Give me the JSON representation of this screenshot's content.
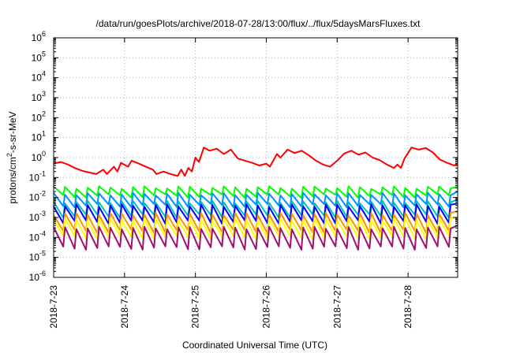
{
  "chart_data": {
    "type": "line",
    "title": "/data/run/goesPlots/archive/2018-07-28/13:00/flux/../flux/5daysMarsFluxes.txt",
    "xlabel": "Coordinated Universal Time (UTC)",
    "ylabel_parts": {
      "pre": "protons/cm",
      "sup": "2",
      "post": "-s-sr-MeV"
    },
    "y_scale": "log",
    "ylim_exponents": [
      -6,
      6
    ],
    "y_tick_labels": [
      {
        "base": "10",
        "exp": "-6"
      },
      {
        "base": "10",
        "exp": "-5"
      },
      {
        "base": "10",
        "exp": "-4"
      },
      {
        "base": "10",
        "exp": "-3"
      },
      {
        "base": "10",
        "exp": "-2"
      },
      {
        "base": "10",
        "exp": "-1"
      },
      {
        "base": "10",
        "exp": "0"
      },
      {
        "base": "10",
        "exp": "1"
      },
      {
        "base": "10",
        "exp": "2"
      },
      {
        "base": "10",
        "exp": "3"
      },
      {
        "base": "10",
        "exp": "4"
      },
      {
        "base": "10",
        "exp": "5"
      },
      {
        "base": "10",
        "exp": "6"
      }
    ],
    "x_tick_labels": [
      "2018-7-23",
      "2018-7-24",
      "2018-7-25",
      "2018-7-26",
      "2018-7-27",
      "2018-7-28"
    ],
    "x_range_days": [
      0,
      5.7
    ],
    "grid": true,
    "legend": "none",
    "series": [
      {
        "color": "#ff0000",
        "points": [
          [
            0,
            0.5
          ],
          [
            0.1,
            0.6
          ],
          [
            0.2,
            0.45
          ],
          [
            0.3,
            0.3
          ],
          [
            0.4,
            0.22
          ],
          [
            0.5,
            0.18
          ],
          [
            0.6,
            0.15
          ],
          [
            0.7,
            0.25
          ],
          [
            0.75,
            0.15
          ],
          [
            0.85,
            0.35
          ],
          [
            0.9,
            0.2
          ],
          [
            0.95,
            0.55
          ],
          [
            1.05,
            0.35
          ],
          [
            1.1,
            0.7
          ],
          [
            1.2,
            0.5
          ],
          [
            1.3,
            0.35
          ],
          [
            1.4,
            0.25
          ],
          [
            1.45,
            0.15
          ],
          [
            1.55,
            0.2
          ],
          [
            1.65,
            0.15
          ],
          [
            1.75,
            0.12
          ],
          [
            1.8,
            0.25
          ],
          [
            1.85,
            0.12
          ],
          [
            1.9,
            0.3
          ],
          [
            1.95,
            0.2
          ],
          [
            2.0,
            1.0
          ],
          [
            2.05,
            0.6
          ],
          [
            2.12,
            3.2
          ],
          [
            2.2,
            2.2
          ],
          [
            2.3,
            2.8
          ],
          [
            2.4,
            1.5
          ],
          [
            2.5,
            2.5
          ],
          [
            2.6,
            0.9
          ],
          [
            2.7,
            0.7
          ],
          [
            2.8,
            0.55
          ],
          [
            2.9,
            0.4
          ],
          [
            3.0,
            0.5
          ],
          [
            3.05,
            0.35
          ],
          [
            3.15,
            1.5
          ],
          [
            3.2,
            1.0
          ],
          [
            3.3,
            2.5
          ],
          [
            3.4,
            1.7
          ],
          [
            3.5,
            2.2
          ],
          [
            3.6,
            1.3
          ],
          [
            3.7,
            0.7
          ],
          [
            3.8,
            0.45
          ],
          [
            3.9,
            0.35
          ],
          [
            4.0,
            0.7
          ],
          [
            4.1,
            1.6
          ],
          [
            4.2,
            2.2
          ],
          [
            4.3,
            1.4
          ],
          [
            4.4,
            1.8
          ],
          [
            4.5,
            1.0
          ],
          [
            4.6,
            0.75
          ],
          [
            4.7,
            0.45
          ],
          [
            4.8,
            0.3
          ],
          [
            4.85,
            0.45
          ],
          [
            4.9,
            0.3
          ],
          [
            4.95,
            0.9
          ],
          [
            5.05,
            3.2
          ],
          [
            5.15,
            2.5
          ],
          [
            5.25,
            3.0
          ],
          [
            5.35,
            1.8
          ],
          [
            5.45,
            0.8
          ],
          [
            5.55,
            0.55
          ],
          [
            5.65,
            0.4
          ],
          [
            5.7,
            0.5
          ]
        ]
      },
      {
        "color": "#00ff00",
        "sawtooth": {
          "high": 0.032,
          "low": 0.012,
          "period": 0.16,
          "end_high": 0.035
        }
      },
      {
        "color": "#0090ff",
        "sawtooth": {
          "high": 0.015,
          "low": 0.004,
          "period": 0.16,
          "end_high": 0.02
        }
      },
      {
        "color": "#00c0c0",
        "sawtooth": {
          "high": 0.006,
          "low": 0.0012,
          "period": 0.16,
          "end_high": 0.008
        }
      },
      {
        "color": "#0000ff",
        "sawtooth": {
          "high": 0.004,
          "low": 0.0006,
          "period": 0.16,
          "end_high": 0.005
        }
      },
      {
        "color": "#ff9000",
        "sawtooth": {
          "high": 0.0015,
          "low": 0.0002,
          "period": 0.16,
          "end_high": 0.002
        }
      },
      {
        "color": "#ffff00",
        "sawtooth": {
          "high": 0.0008,
          "low": 0.0001,
          "period": 0.16,
          "end_high": 0.001
        }
      },
      {
        "color": "#a01070",
        "sawtooth": {
          "high": 0.0003,
          "low": 3e-05,
          "period": 0.16,
          "end_high": 0.0004
        }
      }
    ]
  }
}
